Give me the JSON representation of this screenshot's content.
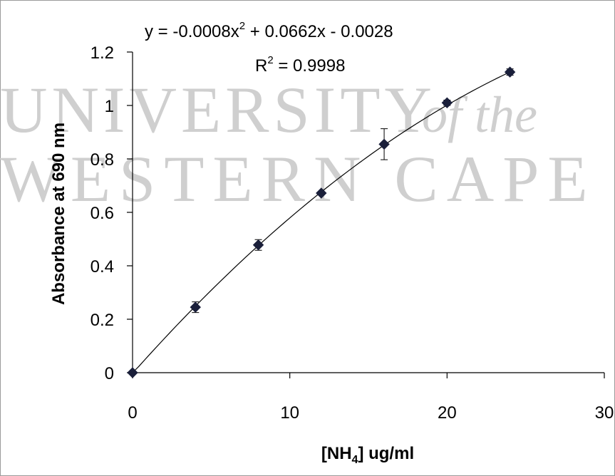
{
  "watermark": {
    "line1": "UNIVERSITY",
    "line1_italic": "of the",
    "line2": "WESTERN CAPE"
  },
  "chart_data": {
    "type": "scatter",
    "title": "",
    "xlabel": "[NH4] ug/ml",
    "xlabel_main": "[NH",
    "xlabel_sub": "4",
    "xlabel_rest": "] ug/ml",
    "ylabel": "Absorbance at 690 nm",
    "xlim": [
      0,
      30
    ],
    "ylim": [
      0,
      1.2
    ],
    "x_ticks": [
      0,
      10,
      20,
      30
    ],
    "x_tick_labels": [
      "0",
      "10",
      "20",
      "30"
    ],
    "y_ticks": [
      0,
      0.2,
      0.4,
      0.6,
      0.8,
      1,
      1.2
    ],
    "y_tick_labels": [
      "0",
      "0.2",
      "0.4",
      "0.6",
      "0.8",
      "1",
      "1.2"
    ],
    "grid": false,
    "series": [
      {
        "x": [
          0,
          4,
          8,
          12,
          16,
          20,
          24
        ],
        "y": [
          0.0,
          0.245,
          0.478,
          0.672,
          0.855,
          1.01,
          1.125
        ],
        "error": [
          0,
          0.02,
          0.02,
          0.005,
          0.058,
          0.01,
          0.012
        ]
      }
    ],
    "trendline": {
      "type": "polynomial",
      "coefficients": [
        -0.0008,
        0.0662,
        -0.0028
      ],
      "x_range": [
        0,
        24
      ]
    },
    "annotations": {
      "equation_prefix": "y = -0.0008x",
      "equation_exp": "2",
      "equation_suffix": " + 0.0662x - 0.0028",
      "r2_prefix": "R",
      "r2_exp": "2",
      "r2_suffix": " = 0.9998"
    },
    "colors": {
      "marker": "#1a1f3a",
      "line": "#000000",
      "watermark": "#cfcfcf"
    }
  }
}
